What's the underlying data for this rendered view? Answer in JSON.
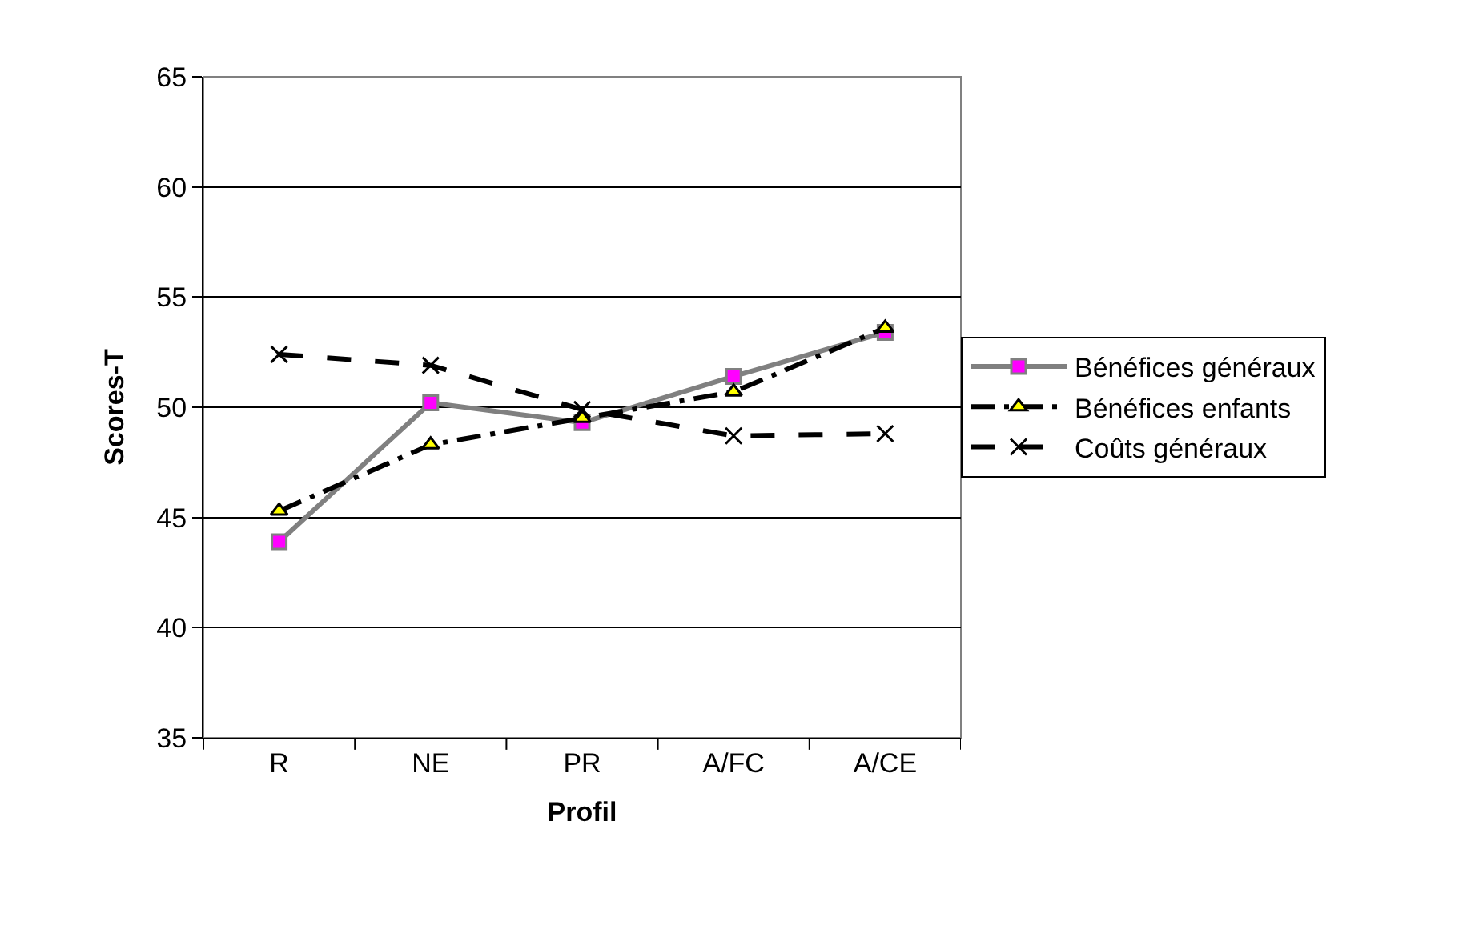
{
  "chart_data": {
    "type": "line",
    "xlabel": "Profil",
    "ylabel": "Scores-T",
    "categories": [
      "R",
      "NE",
      "PR",
      "A/FC",
      "A/CE"
    ],
    "series": [
      {
        "name": "Bénéfices généraux",
        "color": "#808080",
        "colors": [
          "#ff00ff",
          "#ff00ff",
          "#ff00ff",
          "#ff00ff",
          "#ff00ff"
        ],
        "marker": "square",
        "line_style": "solid",
        "values": [
          43.9,
          50.2,
          49.3,
          51.4,
          53.4
        ]
      },
      {
        "name": "Bénéfices enfants",
        "color": "#000000",
        "colors": [
          "#ffff00",
          "#ffff00",
          "#ffff00",
          "#ffff00",
          "#ffff00"
        ],
        "marker": "triangle",
        "line_style": "dashdot",
        "values": [
          45.3,
          48.3,
          49.5,
          50.7,
          53.6
        ]
      },
      {
        "name": "Coûts généraux",
        "color": "#000000",
        "colors": [
          "#000000",
          "#000000",
          "#000000",
          "#000000",
          "#000000"
        ],
        "marker": "cross",
        "line_style": "dashed",
        "values": [
          52.4,
          51.9,
          49.9,
          48.7,
          48.8
        ]
      }
    ],
    "ylim": [
      35,
      65
    ],
    "yticks": [
      35,
      40,
      45,
      50,
      55,
      60,
      65
    ],
    "grid": "y",
    "legend": "right"
  }
}
